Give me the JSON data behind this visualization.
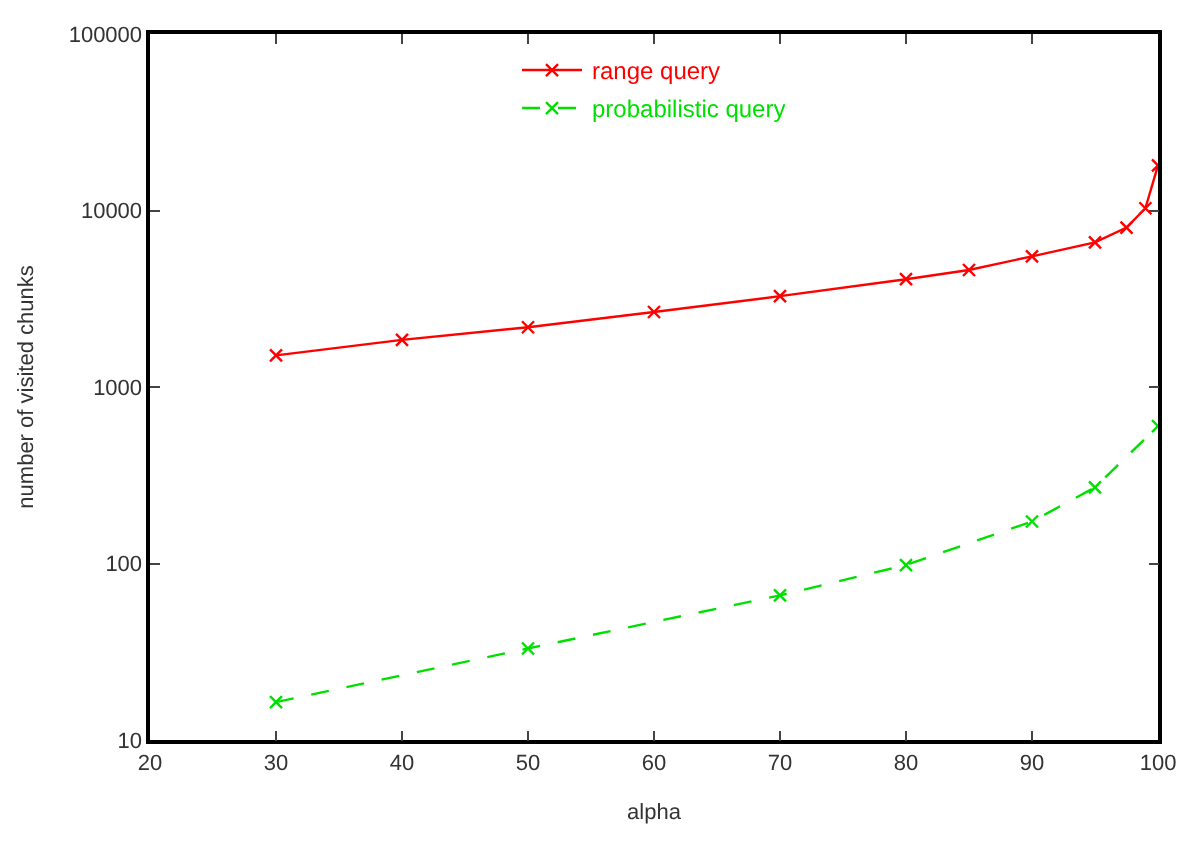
{
  "chart_data": {
    "type": "line",
    "xlabel": "alpha",
    "ylabel": "number of visited chunks",
    "log": "y",
    "xlim": [
      20,
      100
    ],
    "xticks": [
      20,
      30,
      40,
      50,
      60,
      70,
      80,
      90,
      100
    ],
    "ylim": [
      10,
      100000
    ],
    "yticks": [
      10,
      100,
      1000,
      10000,
      100000
    ],
    "legend": "top",
    "marker": "cross",
    "series": [
      {
        "name": "range query",
        "color": "#ff0000",
        "line_style": "solid",
        "x": [
          30,
          40,
          50,
          60,
          70,
          80,
          85,
          90,
          95,
          97.5,
          99,
          100
        ],
        "values": [
          1510,
          1850,
          2180,
          2660,
          3270,
          4080,
          4600,
          5500,
          6600,
          8000,
          10300,
          18000
        ]
      },
      {
        "name": "probabilistic query",
        "color": "#00e000",
        "line_style": "dashed",
        "x": [
          30,
          50,
          70,
          80,
          90,
          95,
          100
        ],
        "values": [
          16.4,
          33,
          66,
          98,
          173,
          270,
          600
        ]
      }
    ]
  }
}
